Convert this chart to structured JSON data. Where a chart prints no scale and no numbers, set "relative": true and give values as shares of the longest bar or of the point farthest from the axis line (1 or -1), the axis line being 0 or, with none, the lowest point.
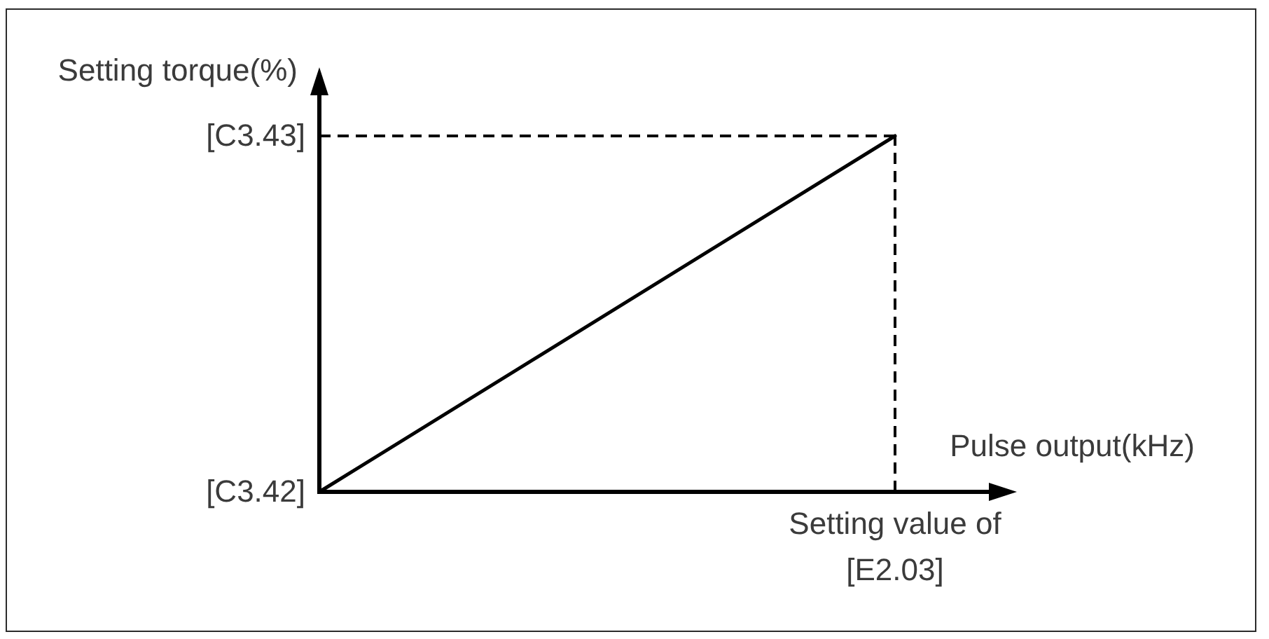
{
  "chart_data": {
    "type": "line",
    "xlabel": "Pulse output(kHz)",
    "ylabel": "Setting torque(%)",
    "relative": true,
    "categories": [
      null,
      null
    ],
    "series": [
      {
        "color": "#000000",
        "values": [
          0,
          1
        ]
      }
    ],
    "ref_lines": [
      {
        "axis": "y",
        "value": 1,
        "color": "#000000",
        "line_style": "dashed"
      }
    ],
    "annotations": [
      "[C3.43]",
      "[C3.42]",
      "Setting value of [E2.03]"
    ]
  }
}
